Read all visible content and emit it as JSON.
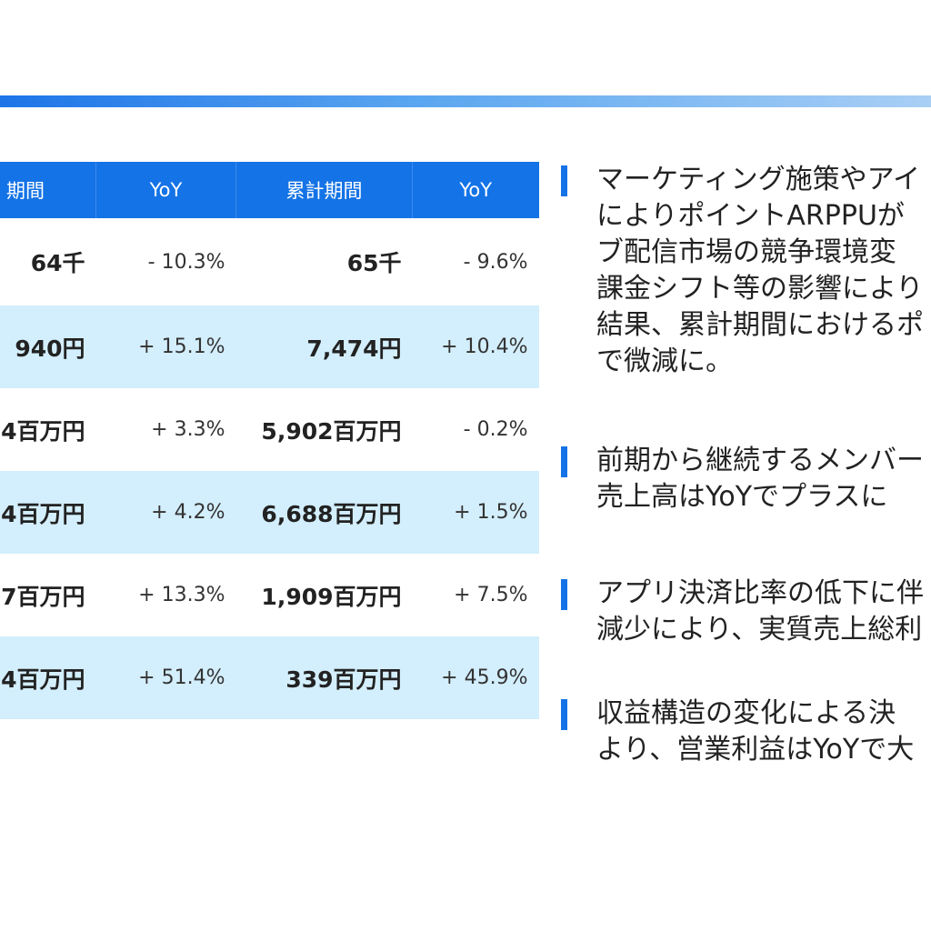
{
  "header_bar": {
    "color": "#1e74e8"
  },
  "table": {
    "headers": [
      "期間",
      "YoY",
      "累計期間",
      "YoY"
    ],
    "rows": [
      {
        "period": "64千",
        "yoy1": "- 10.3%",
        "cumulative": "65千",
        "yoy2": "- 9.6%"
      },
      {
        "period": "940円",
        "yoy1": "+ 15.1%",
        "cumulative": "7,474円",
        "yoy2": "+ 10.4%"
      },
      {
        "period": "4百万円",
        "yoy1": "+ 3.3%",
        "cumulative": "5,902百万円",
        "yoy2": "- 0.2%"
      },
      {
        "period": "4百万円",
        "yoy1": "+ 4.2%",
        "cumulative": "6,688百万円",
        "yoy2": "+ 1.5%"
      },
      {
        "period": "7百万円",
        "yoy1": "+ 13.3%",
        "cumulative": "1,909百万円",
        "yoy2": "+ 7.5%"
      },
      {
        "period": "4百万円",
        "yoy1": "+ 51.4%",
        "cumulative": "339百万円",
        "yoy2": "+ 45.9%"
      }
    ]
  },
  "commentary": [
    {
      "lines": [
        "マーケティング施策やアイ",
        "によりポイントARPPUが",
        "ブ配信市場の競争環境変",
        "課金シフト等の影響により",
        "結果、累計期間におけるポ",
        "で微減に。"
      ]
    },
    {
      "lines": [
        "前期から継続するメンバー",
        "売上高はYoYでプラスに"
      ]
    },
    {
      "lines": [
        "アプリ決済比率の低下に伴",
        "減少により、実質売上総利"
      ]
    },
    {
      "lines": [
        "収益構造の変化による決",
        "より、営業利益はYoYで大"
      ]
    }
  ],
  "colors": {
    "accent": "#1473e6",
    "row_alt": "#d3eefc"
  }
}
